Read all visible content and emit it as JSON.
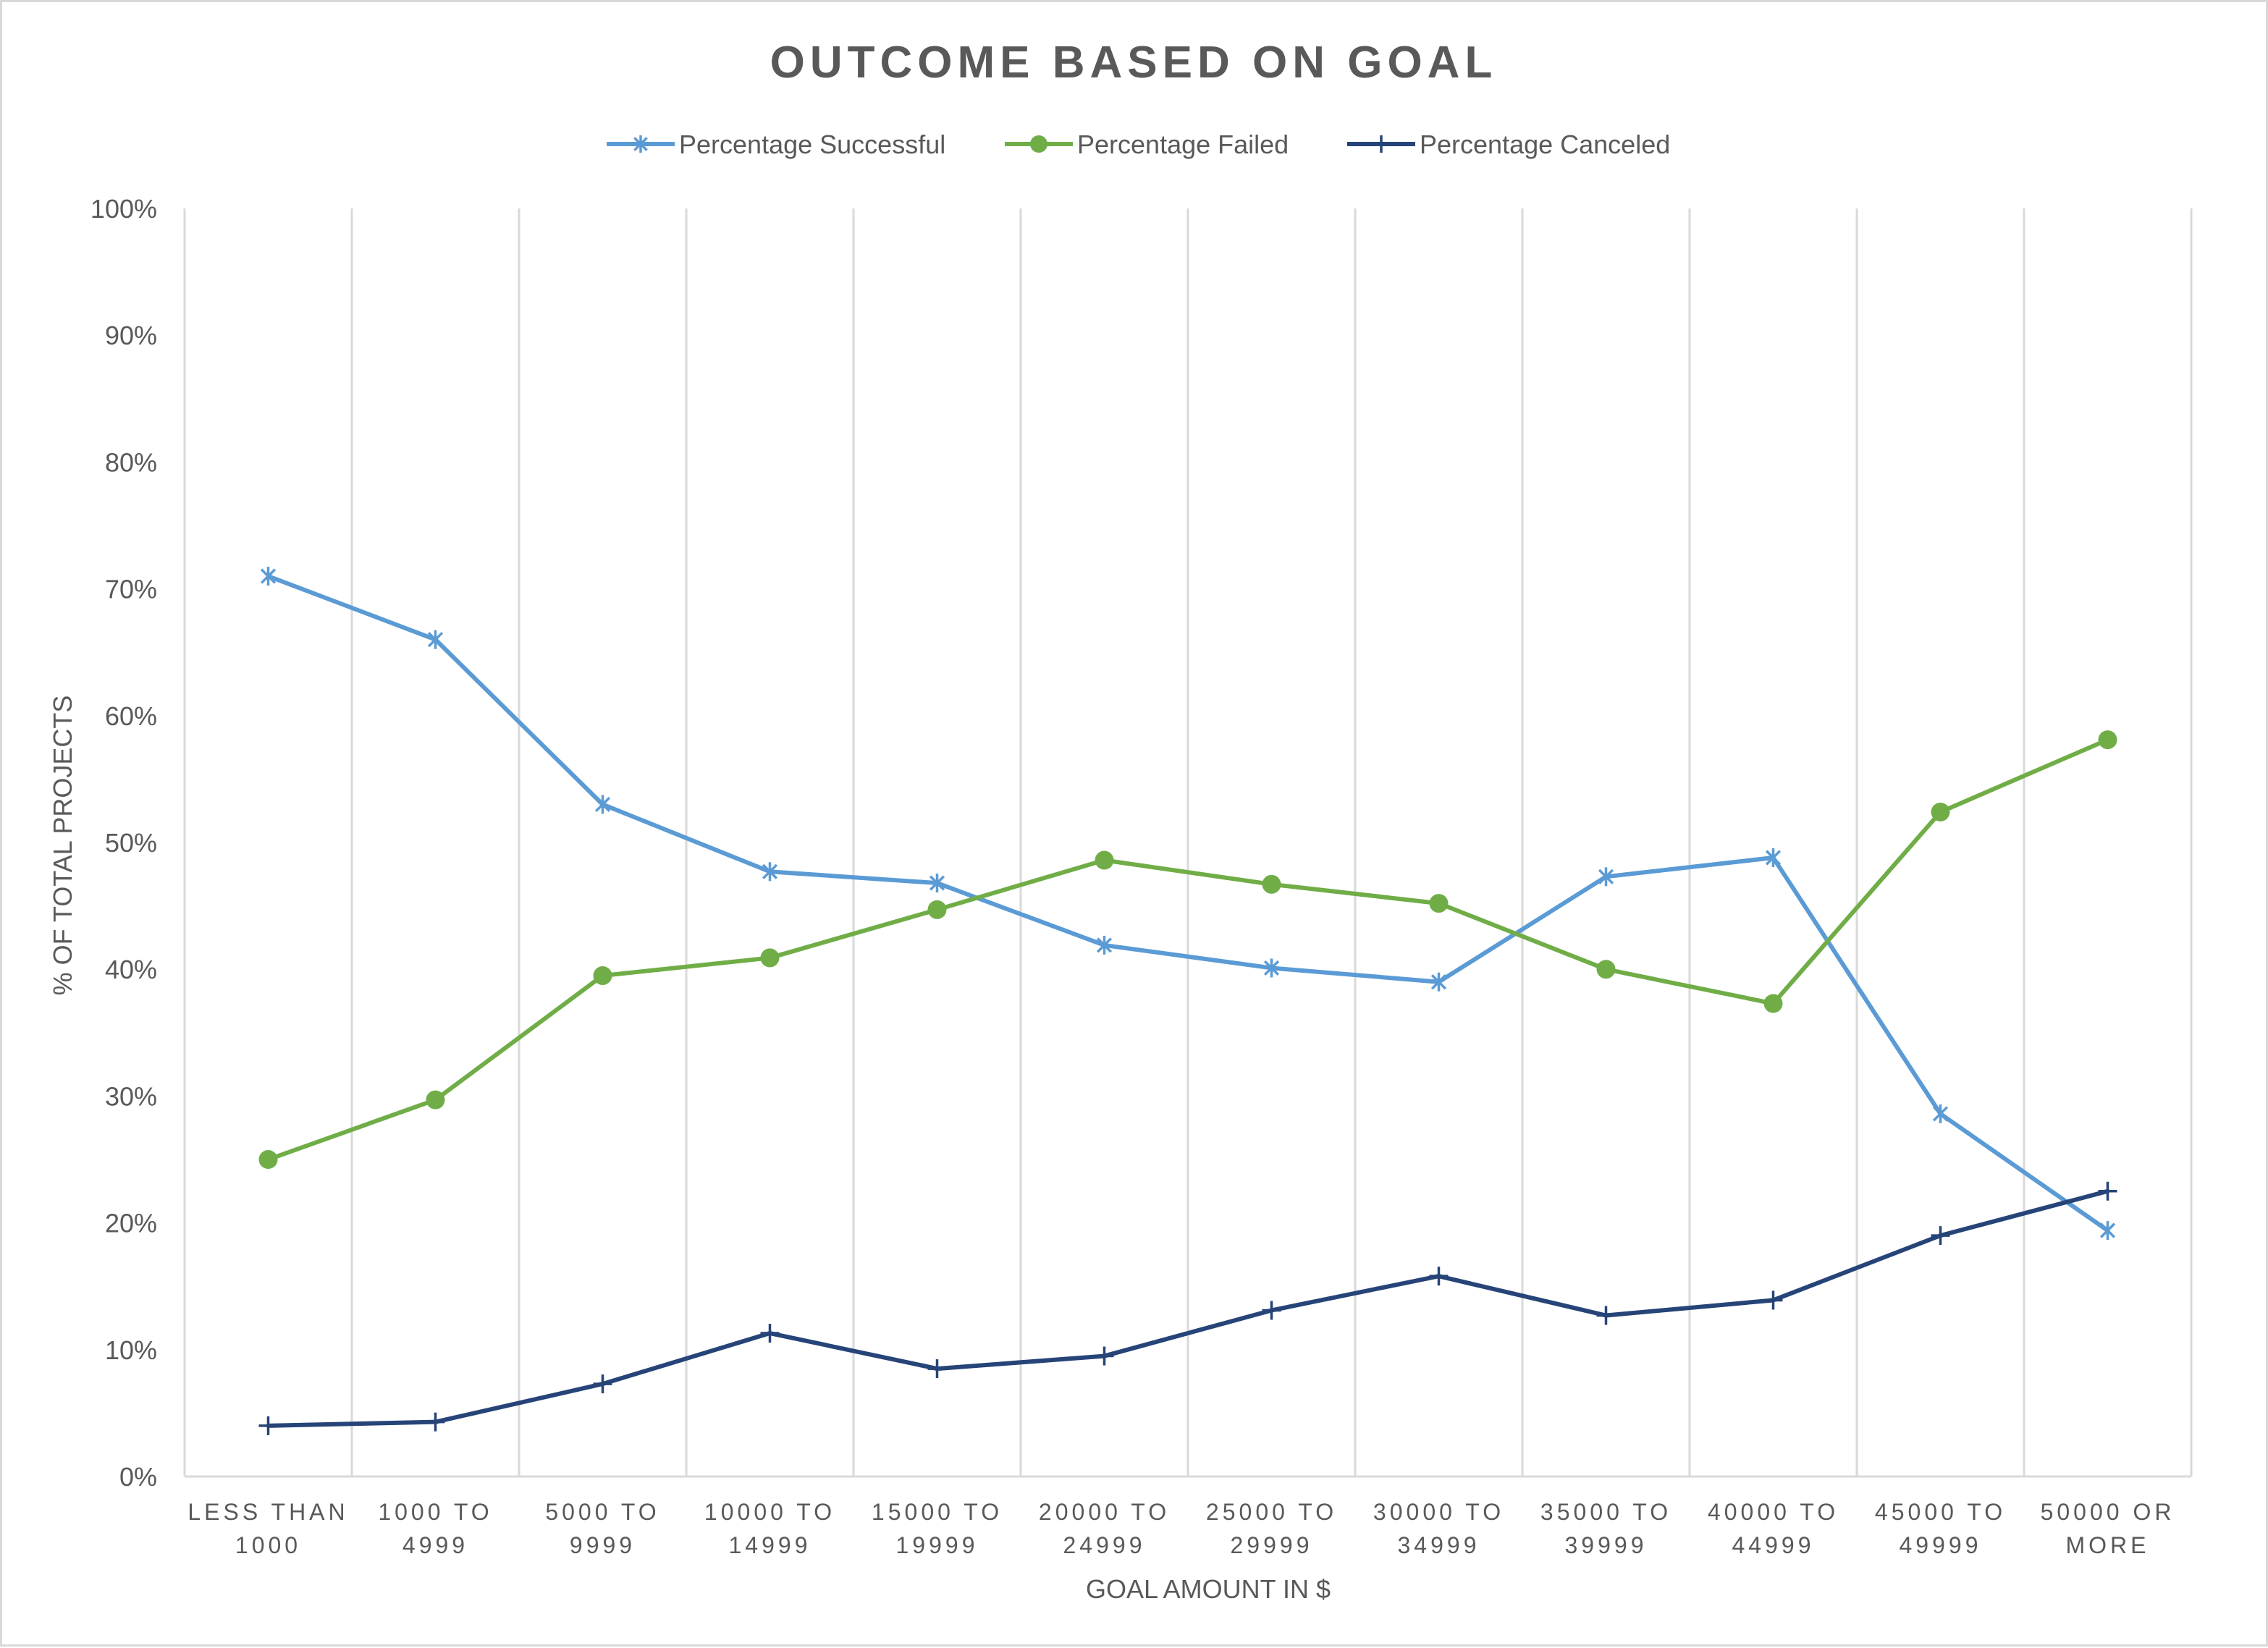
{
  "chart_data": {
    "type": "line",
    "title": "OUTCOME BASED ON GOAL",
    "xlabel": "GOAL AMOUNT IN $",
    "ylabel": "% OF TOTAL PROJECTS",
    "ylim": [
      0,
      1
    ],
    "y_tick_labels": [
      "0%",
      "10%",
      "20%",
      "30%",
      "40%",
      "50%",
      "60%",
      "70%",
      "80%",
      "90%",
      "100%"
    ],
    "grid": "vertical",
    "legend_position": "top",
    "categories": [
      [
        "LESS THAN",
        "1000"
      ],
      [
        "1000 TO",
        "4999"
      ],
      [
        "5000 TO",
        "9999"
      ],
      [
        "10000 TO",
        "14999"
      ],
      [
        "15000 TO",
        "19999"
      ],
      [
        "20000 TO",
        "24999"
      ],
      [
        "25000 TO",
        "29999"
      ],
      [
        "30000 TO",
        "34999"
      ],
      [
        "35000 TO",
        "39999"
      ],
      [
        "40000 TO",
        "44999"
      ],
      [
        "45000 TO",
        "49999"
      ],
      [
        "50000 OR",
        "MORE"
      ]
    ],
    "series": [
      {
        "name": "Percentage Successful",
        "color": "#5b9bd5",
        "marker": "asterisk",
        "values": [
          0.71,
          0.66,
          0.53,
          0.477,
          0.468,
          0.419,
          0.401,
          0.39,
          0.473,
          0.488,
          0.286,
          0.194
        ]
      },
      {
        "name": "Percentage Failed",
        "color": "#70ad47",
        "marker": "circle",
        "values": [
          0.25,
          0.297,
          0.395,
          0.409,
          0.447,
          0.486,
          0.467,
          0.452,
          0.4,
          0.373,
          0.524,
          0.581
        ]
      },
      {
        "name": "Percentage Canceled",
        "color": "#264478",
        "marker": "plus",
        "values": [
          0.04,
          0.043,
          0.073,
          0.113,
          0.085,
          0.095,
          0.131,
          0.158,
          0.127,
          0.139,
          0.19,
          0.225
        ]
      }
    ]
  }
}
